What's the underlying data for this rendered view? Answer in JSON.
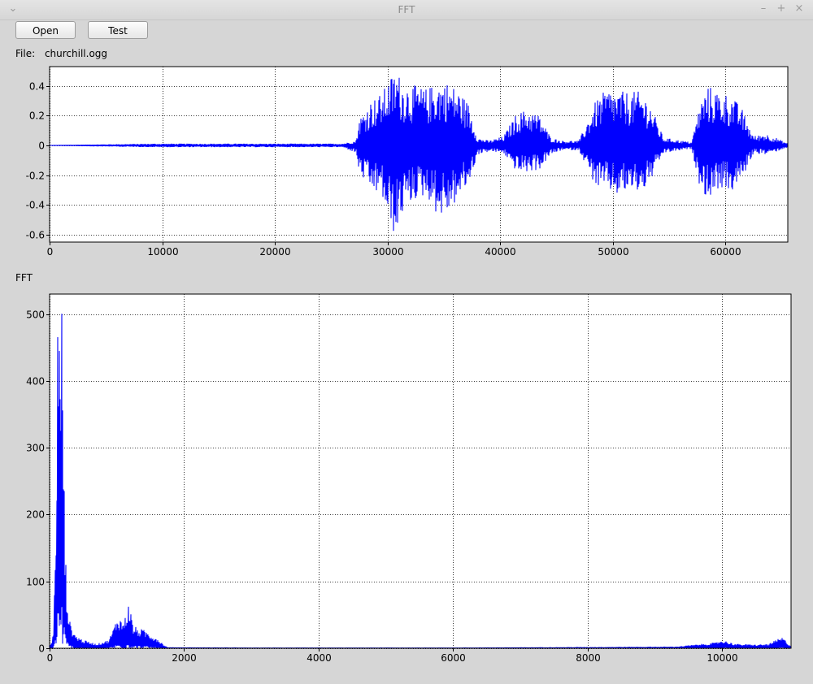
{
  "window": {
    "title": "FFT",
    "icons": {
      "menu": "chevron-down-icon",
      "minimize": "minimize-icon",
      "maximize": "maximize-icon",
      "close": "close-icon"
    },
    "controls": {
      "menu": "⌄",
      "minimize": "–",
      "maximize": "+",
      "close": "×"
    }
  },
  "toolbar": {
    "open_label": "Open",
    "test_label": "Test"
  },
  "file": {
    "label": "File:",
    "name": "churchill.ogg"
  },
  "fft_section_label": "FFT",
  "colors": {
    "series": "#0000ff",
    "background": "#d6d6d6",
    "plot_bg": "#ffffff"
  },
  "chart_data": [
    {
      "type": "line",
      "title": "",
      "xlabel": "",
      "ylabel": "",
      "xlim": [
        0,
        65536
      ],
      "ylim": [
        -0.65,
        0.53
      ],
      "xticks": [
        0,
        10000,
        20000,
        30000,
        40000,
        50000,
        60000
      ],
      "yticks": [
        -0.6,
        -0.4,
        -0.2,
        0,
        0.2,
        0.4
      ],
      "ytick_labels": [
        "-0.6",
        "-0.4",
        "-0.2",
        "0",
        "0.2",
        "0.4"
      ],
      "grid": true,
      "series": [
        {
          "envelope_x": [
            0,
            9500,
            26000,
            27200,
            27500,
            28500,
            29500,
            30200,
            30800,
            31400,
            32500,
            33500,
            34500,
            35200,
            36200,
            37200,
            38000,
            39000,
            40300,
            41500,
            42500,
            43500,
            44500,
            45500,
            47000,
            48500,
            49500,
            50500,
            51500,
            52500,
            53200,
            54500,
            57000,
            57800,
            58500,
            59500,
            60500,
            61500,
            62500,
            63500,
            64500,
            65536
          ],
          "envelope_upper": [
            0.0,
            0.01,
            0.01,
            0.03,
            0.18,
            0.3,
            0.35,
            0.45,
            0.51,
            0.42,
            0.4,
            0.38,
            0.43,
            0.43,
            0.38,
            0.28,
            0.05,
            0.03,
            0.06,
            0.22,
            0.24,
            0.2,
            0.05,
            0.03,
            0.03,
            0.3,
            0.38,
            0.36,
            0.36,
            0.36,
            0.3,
            0.05,
            0.02,
            0.3,
            0.4,
            0.36,
            0.34,
            0.24,
            0.06,
            0.08,
            0.05,
            0.01
          ],
          "envelope_lower": [
            0.0,
            -0.01,
            -0.01,
            -0.05,
            -0.19,
            -0.3,
            -0.34,
            -0.55,
            -0.62,
            -0.44,
            -0.36,
            -0.34,
            -0.48,
            -0.47,
            -0.37,
            -0.26,
            -0.06,
            -0.04,
            -0.05,
            -0.18,
            -0.18,
            -0.16,
            -0.06,
            -0.03,
            -0.03,
            -0.28,
            -0.3,
            -0.34,
            -0.3,
            -0.32,
            -0.26,
            -0.05,
            -0.02,
            -0.3,
            -0.36,
            -0.28,
            -0.32,
            -0.22,
            -0.05,
            -0.06,
            -0.04,
            -0.01
          ]
        }
      ]
    },
    {
      "type": "line",
      "title": "",
      "xlabel": "",
      "ylabel": "",
      "xlim": [
        0,
        11025
      ],
      "ylim": [
        0,
        530
      ],
      "xticks": [
        0,
        2000,
        4000,
        6000,
        8000,
        10000
      ],
      "yticks": [
        0,
        100,
        200,
        300,
        400,
        500
      ],
      "grid": true,
      "series": [
        {
          "x": [
            0,
            40,
            60,
            80,
            100,
            120,
            130,
            150,
            165,
            180,
            195,
            210,
            230,
            260,
            300,
            380,
            500,
            700,
            880,
            950,
            1020,
            1080,
            1120,
            1180,
            1240,
            1300,
            1380,
            1450,
            1520,
            1600,
            1700,
            1750,
            3000,
            6000,
            9300,
            9600,
            9900,
            10000,
            10200,
            10500,
            10700,
            10800,
            10900,
            11025
          ],
          "values": [
            5,
            10,
            30,
            120,
            240,
            510,
            420,
            500,
            485,
            528,
            470,
            300,
            160,
            80,
            40,
            20,
            12,
            6,
            12,
            30,
            50,
            40,
            45,
            70,
            35,
            30,
            28,
            25,
            20,
            15,
            5,
            1,
            0.5,
            0.5,
            2,
            5,
            8,
            12,
            6,
            5,
            6,
            12,
            16,
            2
          ]
        }
      ]
    }
  ]
}
